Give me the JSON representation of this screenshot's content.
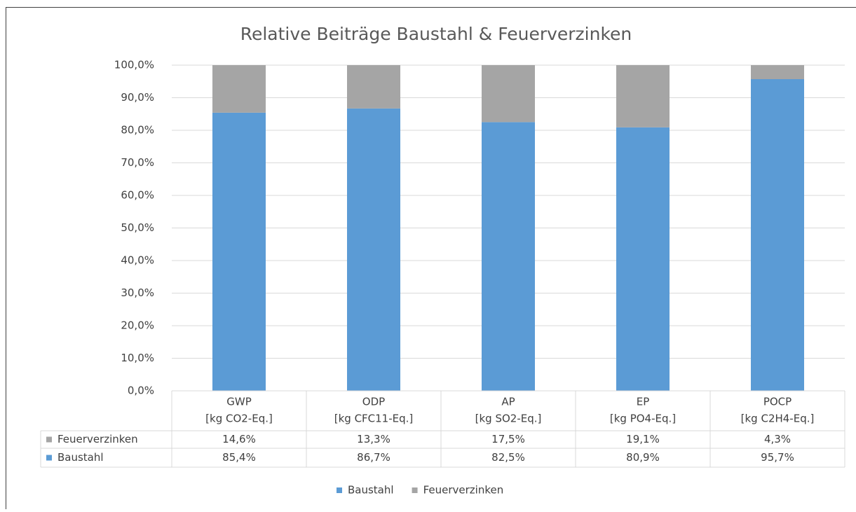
{
  "chart_data": {
    "type": "stacked_bar",
    "title": "Relative Beiträge Baustahl & Feuerverzinken",
    "categories": [
      [
        "GWP",
        "[kg CO2-Eq.]"
      ],
      [
        "ODP",
        "[kg CFC11-Eq.]"
      ],
      [
        "AP",
        "[kg SO2-Eq.]"
      ],
      [
        "EP",
        "[kg PO4-Eq.]"
      ],
      [
        "POCP",
        "[kg C2H4-Eq.]"
      ]
    ],
    "series": [
      {
        "name": "Baustahl",
        "color": "#5b9bd5",
        "values": [
          85.4,
          86.7,
          82.5,
          80.9,
          95.7
        ],
        "value_labels": [
          "85,4%",
          "86,7%",
          "82,5%",
          "80,9%",
          "95,7%"
        ]
      },
      {
        "name": "Feuerverzinken",
        "color": "#a5a5a5",
        "values": [
          14.6,
          13.3,
          17.5,
          19.1,
          4.3
        ],
        "value_labels": [
          "14,6%",
          "13,3%",
          "17,5%",
          "19,1%",
          "4,3%"
        ]
      }
    ],
    "ylim": [
      0,
      100
    ],
    "yticks": [
      {
        "value": 0,
        "label": "0,0%"
      },
      {
        "value": 10,
        "label": "10,0%"
      },
      {
        "value": 20,
        "label": "20,0%"
      },
      {
        "value": 30,
        "label": "30,0%"
      },
      {
        "value": 40,
        "label": "40,0%"
      },
      {
        "value": 50,
        "label": "50,0%"
      },
      {
        "value": 60,
        "label": "60,0%"
      },
      {
        "value": 70,
        "label": "70,0%"
      },
      {
        "value": 80,
        "label": "80,0%"
      },
      {
        "value": 90,
        "label": "90,0%"
      },
      {
        "value": 100,
        "label": "100,0%"
      }
    ],
    "grid": true
  }
}
